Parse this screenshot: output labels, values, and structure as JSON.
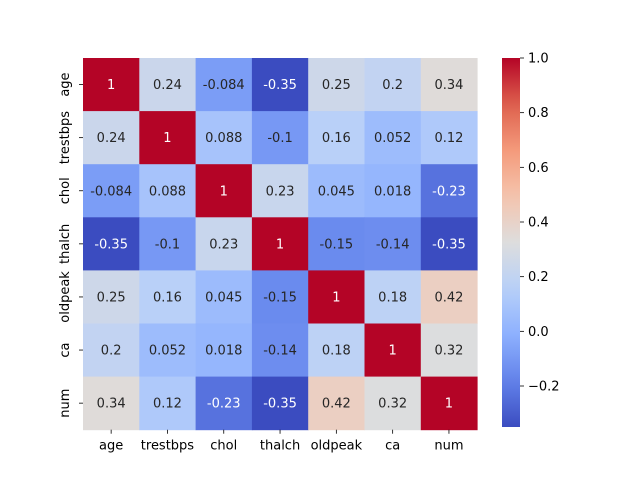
{
  "chart_data": {
    "type": "heatmap",
    "rows": [
      "age",
      "trestbps",
      "chol",
      "thalch",
      "oldpeak",
      "ca",
      "num"
    ],
    "columns": [
      "age",
      "trestbps",
      "chol",
      "thalch",
      "oldpeak",
      "ca",
      "num"
    ],
    "values": [
      [
        1,
        0.24,
        -0.084,
        -0.35,
        0.25,
        0.2,
        0.34
      ],
      [
        0.24,
        1,
        0.088,
        -0.1,
        0.16,
        0.052,
        0.12
      ],
      [
        -0.084,
        0.088,
        1,
        0.23,
        0.045,
        0.018,
        -0.23
      ],
      [
        -0.35,
        -0.1,
        0.23,
        1,
        -0.15,
        -0.14,
        -0.35
      ],
      [
        0.25,
        0.16,
        0.045,
        -0.15,
        1,
        0.18,
        0.42
      ],
      [
        0.2,
        0.052,
        0.018,
        -0.14,
        0.18,
        1,
        0.32
      ],
      [
        0.34,
        0.12,
        -0.23,
        -0.35,
        0.42,
        0.32,
        1
      ]
    ],
    "annotations": [
      [
        "1",
        "0.24",
        "-0.084",
        "-0.35",
        "0.25",
        "0.2",
        "0.34"
      ],
      [
        "0.24",
        "1",
        "0.088",
        "-0.1",
        "0.16",
        "0.052",
        "0.12"
      ],
      [
        "-0.084",
        "0.088",
        "1",
        "0.23",
        "0.045",
        "0.018",
        "-0.23"
      ],
      [
        "-0.35",
        "-0.1",
        "0.23",
        "1",
        "-0.15",
        "-0.14",
        "-0.35"
      ],
      [
        "0.25",
        "0.16",
        "0.045",
        "-0.15",
        "1",
        "0.18",
        "0.42"
      ],
      [
        "0.2",
        "0.052",
        "0.018",
        "-0.14",
        "0.18",
        "1",
        "0.32"
      ],
      [
        "0.34",
        "0.12",
        "-0.23",
        "-0.35",
        "0.42",
        "0.32",
        "1"
      ]
    ],
    "colormap": "coolwarm",
    "vmin": -0.35,
    "vmax": 1.0,
    "colorbar": {
      "ticks": [
        -0.2,
        0.0,
        0.2,
        0.4,
        0.6,
        0.8,
        1.0
      ],
      "tick_labels": [
        "−0.2",
        "0.0",
        "0.2",
        "0.4",
        "0.6",
        "0.8",
        "1.0"
      ],
      "position": "right"
    },
    "title": "",
    "xlabel": "",
    "ylabel": ""
  }
}
